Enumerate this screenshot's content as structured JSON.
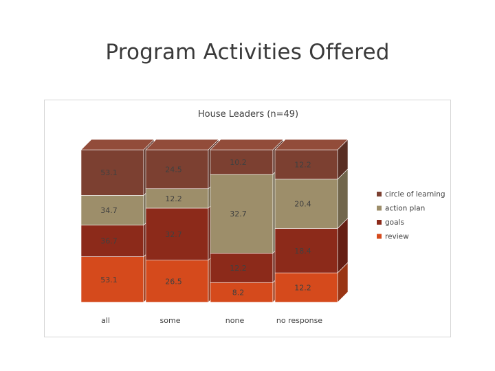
{
  "page_title": "Program Activities Offered",
  "chart_data": {
    "type": "bar",
    "stacked": true,
    "three_d": true,
    "title": "House Leaders (n=49)",
    "categories": [
      "all",
      "some",
      "none",
      "no response"
    ],
    "series": [
      {
        "name": "review",
        "values": [
          53.1,
          26.5,
          8.2,
          12.2
        ],
        "color": "#d54a1c"
      },
      {
        "name": "goals",
        "values": [
          36.7,
          32.7,
          12.2,
          18.4
        ],
        "color": "#8c2a1a"
      },
      {
        "name": "action plan",
        "values": [
          34.7,
          12.2,
          32.7,
          20.4
        ],
        "color": "#9d8e6a"
      },
      {
        "name": "circle of learning",
        "values": [
          53.1,
          24.5,
          10.2,
          12.2
        ],
        "color": "#7c4031"
      }
    ],
    "legend_position": "right",
    "grid": false
  }
}
